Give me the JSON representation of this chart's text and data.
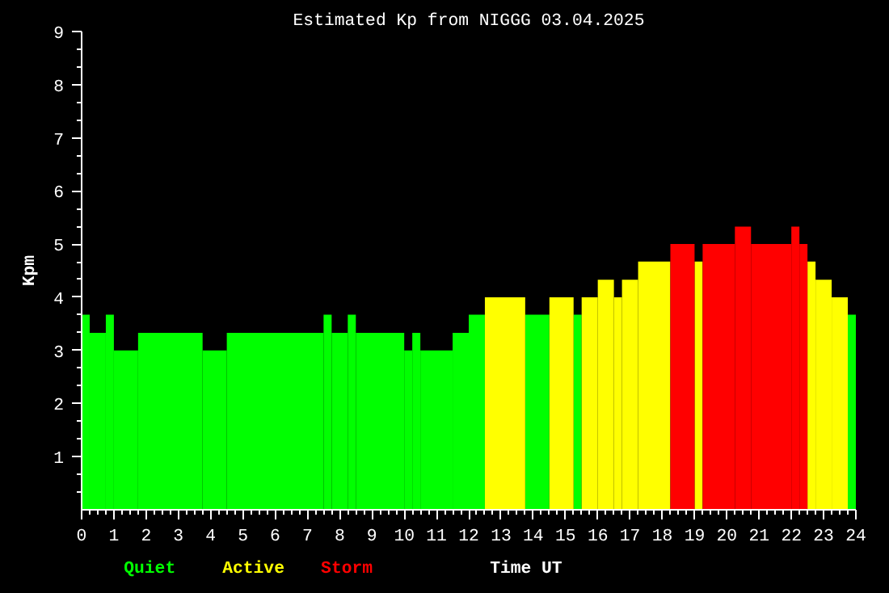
{
  "chart_data": {
    "type": "histogram",
    "title": "Estimated Kp from NIGGG 03.04.2025",
    "xlabel": "Time UT",
    "ylabel": "Kpm",
    "xlim": [
      0,
      24
    ],
    "xticks": [
      0,
      1,
      2,
      3,
      4,
      5,
      6,
      7,
      8,
      9,
      10,
      11,
      12,
      13,
      14,
      15,
      16,
      17,
      18,
      19,
      20,
      21,
      22,
      23,
      24
    ],
    "ylim": [
      0,
      9
    ],
    "yticks": [
      1,
      2,
      3,
      4,
      5,
      6,
      7,
      8,
      9
    ],
    "grid": false,
    "bins": [
      0,
      0.25,
      0.75,
      1,
      1.75,
      3.75,
      4.5,
      7.5,
      7.75,
      8.25,
      8.5,
      10,
      10.25,
      10.5,
      11.5,
      12,
      12.5,
      13.75,
      14.5,
      15.25,
      15.5,
      16,
      16.5,
      16.75,
      17.25,
      18.25,
      19,
      19.25,
      20.25,
      20.75,
      22,
      22.25,
      22.5,
      22.75,
      23.25,
      23.75,
      24
    ],
    "series": [
      {
        "name": "Quiet",
        "color": "#00ff00",
        "values": [
          3.67,
          3.33,
          3.67,
          3,
          3.33,
          3,
          3.33,
          3.67,
          3.33,
          3.67,
          3.33,
          3,
          3.33,
          3,
          3.33,
          3.67,
          null,
          3.67,
          null,
          3.67,
          null,
          null,
          null,
          null,
          null,
          null,
          null,
          null,
          null,
          null,
          null,
          null,
          null,
          null,
          null,
          3.67
        ]
      },
      {
        "name": "Active",
        "color": "#ffff00",
        "values": [
          null,
          null,
          null,
          null,
          null,
          null,
          null,
          null,
          null,
          null,
          null,
          null,
          null,
          null,
          null,
          null,
          4,
          null,
          4,
          null,
          4,
          4.33,
          4,
          4.33,
          4.67,
          null,
          4.67,
          null,
          null,
          null,
          null,
          null,
          4.67,
          4.33,
          4,
          null
        ]
      },
      {
        "name": "Storm",
        "color": "#ff0000",
        "values": [
          null,
          null,
          null,
          null,
          null,
          null,
          null,
          null,
          null,
          null,
          null,
          null,
          null,
          null,
          null,
          null,
          null,
          null,
          null,
          null,
          null,
          null,
          null,
          null,
          null,
          5,
          null,
          5,
          5.33,
          5,
          5.33,
          5,
          null,
          null,
          null,
          null
        ]
      }
    ]
  }
}
